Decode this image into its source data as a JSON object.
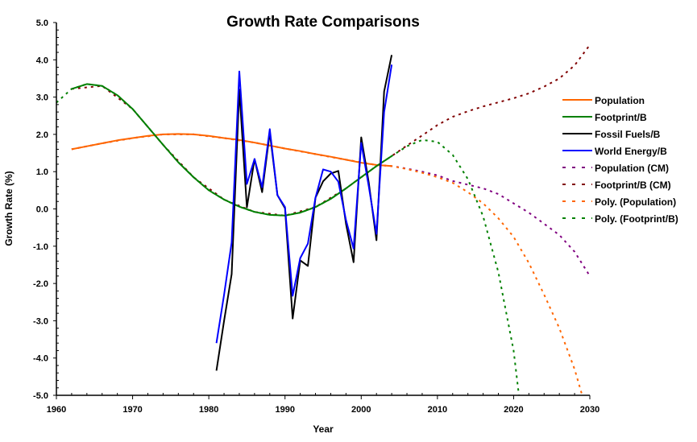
{
  "chart_data": {
    "type": "line",
    "title": "Growth Rate Comparisons",
    "xlabel": "Year",
    "ylabel": "Growth Rate (%)",
    "xlim": [
      1960,
      2030
    ],
    "ylim": [
      -5.0,
      5.0
    ],
    "x_ticks": [
      "1960",
      "1970",
      "1980",
      "1990",
      "2000",
      "2010",
      "2020",
      "2030"
    ],
    "y_ticks": [
      "5.0",
      "4.0",
      "3.0",
      "2.0",
      "1.0",
      "0.0",
      "-1.0",
      "-2.0",
      "-3.0",
      "-4.0",
      "-5.0"
    ],
    "grid": false,
    "legend_position": "right",
    "series": [
      {
        "name": "Population",
        "color": "#ff6600",
        "style": "solid",
        "x": [
          1962,
          1964,
          1966,
          1968,
          1970,
          1972,
          1974,
          1976,
          1978,
          1980,
          1982,
          1984,
          1986,
          1988,
          1990,
          1992,
          1994,
          1996,
          1998,
          2000,
          2002,
          2004
        ],
        "values": [
          1.6,
          1.68,
          1.76,
          1.84,
          1.9,
          1.96,
          2.0,
          2.01,
          2.0,
          1.96,
          1.9,
          1.85,
          1.78,
          1.7,
          1.62,
          1.55,
          1.47,
          1.4,
          1.32,
          1.24,
          1.18,
          1.15
        ]
      },
      {
        "name": "Footprint/B",
        "color": "#008000",
        "style": "solid",
        "x": [
          1962,
          1964,
          1966,
          1968,
          1970,
          1972,
          1974,
          1976,
          1978,
          1980,
          1982,
          1984,
          1986,
          1988,
          1990,
          1992,
          1994,
          1996,
          1998,
          2000,
          2002,
          2004
        ],
        "values": [
          3.22,
          3.35,
          3.3,
          3.05,
          2.68,
          2.2,
          1.72,
          1.25,
          0.85,
          0.5,
          0.25,
          0.06,
          -0.08,
          -0.16,
          -0.18,
          -0.1,
          0.05,
          0.27,
          0.55,
          0.85,
          1.15,
          1.42
        ]
      },
      {
        "name": "Fossil Fuels/B",
        "color": "#000000",
        "style": "solid",
        "x": [
          1981,
          1982,
          1983,
          1984,
          1985,
          1986,
          1987,
          1988,
          1989,
          1990,
          1991,
          1992,
          1993,
          1994,
          1995,
          1996,
          1997,
          1998,
          1999,
          2000,
          2001,
          2002,
          2003,
          2004
        ],
        "values": [
          -4.34,
          -3.0,
          -1.75,
          3.2,
          0.04,
          1.34,
          0.45,
          2.05,
          0.37,
          0.02,
          -2.94,
          -1.38,
          -1.53,
          0.3,
          0.74,
          0.95,
          1.02,
          -0.4,
          -1.43,
          1.92,
          0.7,
          -0.84,
          3.15,
          4.13
        ]
      },
      {
        "name": "World Energy/B",
        "color": "#0000ff",
        "style": "solid",
        "x": [
          1981,
          1982,
          1983,
          1984,
          1985,
          1986,
          1987,
          1988,
          1989,
          1990,
          1991,
          1992,
          1993,
          1994,
          1995,
          1996,
          1997,
          1998,
          1999,
          2000,
          2001,
          2002,
          2003,
          2004
        ],
        "values": [
          -3.6,
          -2.3,
          -0.9,
          3.69,
          0.67,
          1.34,
          0.58,
          2.14,
          0.37,
          0.05,
          -2.33,
          -1.32,
          -0.93,
          0.3,
          1.06,
          1.0,
          0.73,
          -0.3,
          -1.06,
          1.77,
          0.6,
          -0.67,
          2.6,
          3.87
        ]
      },
      {
        "name": "Population (CM)",
        "color": "#800080",
        "style": "dashed",
        "x": [
          1962,
          1966,
          1970,
          1974,
          1978,
          1982,
          1986,
          1990,
          1994,
          1998,
          2002,
          2004,
          2006,
          2008,
          2010,
          2012,
          2014,
          2016,
          2018,
          2020,
          2022,
          2024,
          2026,
          2028,
          2030
        ],
        "values": [
          1.6,
          1.76,
          1.9,
          2.0,
          2.0,
          1.9,
          1.78,
          1.62,
          1.47,
          1.32,
          1.18,
          1.15,
          1.08,
          1.0,
          0.9,
          0.75,
          0.65,
          0.55,
          0.4,
          0.15,
          -0.1,
          -0.4,
          -0.7,
          -1.15,
          -1.8
        ]
      },
      {
        "name": "Footprint/B (CM)",
        "color": "#800000",
        "style": "dashed",
        "x": [
          1962,
          1966,
          1970,
          1974,
          1978,
          1982,
          1986,
          1990,
          1994,
          1998,
          2002,
          2004,
          2006,
          2008,
          2010,
          2012,
          2014,
          2016,
          2018,
          2020,
          2022,
          2024,
          2026,
          2028,
          2030
        ],
        "values": [
          3.22,
          3.3,
          2.68,
          1.72,
          0.85,
          0.25,
          -0.08,
          -0.18,
          0.05,
          0.55,
          1.15,
          1.42,
          1.7,
          1.97,
          2.25,
          2.47,
          2.62,
          2.75,
          2.86,
          2.97,
          3.1,
          3.28,
          3.5,
          3.85,
          4.4
        ]
      },
      {
        "name": "Poly. (Population)",
        "color": "#ff6600",
        "style": "dashed",
        "x": [
          1962,
          1966,
          1970,
          1974,
          1978,
          1982,
          1986,
          1990,
          1994,
          1998,
          2002,
          2004,
          2006,
          2008,
          2010,
          2012,
          2014,
          2016,
          2018,
          2020,
          2022,
          2024,
          2026,
          2028,
          2029
        ],
        "values": [
          1.6,
          1.76,
          1.9,
          2.0,
          2.0,
          1.9,
          1.78,
          1.62,
          1.47,
          1.32,
          1.18,
          1.15,
          1.07,
          0.97,
          0.85,
          0.7,
          0.45,
          0.15,
          -0.25,
          -0.75,
          -1.45,
          -2.3,
          -3.2,
          -4.3,
          -5.0
        ]
      },
      {
        "name": "Poly. (Footprint/B)",
        "color": "#008000",
        "style": "dashed",
        "x": [
          1960,
          1962,
          1964,
          1966,
          1968,
          1970,
          1972,
          1974,
          1976,
          1978,
          1980,
          1982,
          1984,
          1986,
          1988,
          1990,
          1992,
          1994,
          1996,
          1998,
          2000,
          2002,
          2004,
          2006,
          2008,
          2010,
          2012,
          2014,
          2016,
          2018,
          2020,
          2020.7
        ],
        "values": [
          2.85,
          3.22,
          3.35,
          3.3,
          3.05,
          2.68,
          2.2,
          1.72,
          1.25,
          0.85,
          0.5,
          0.25,
          0.06,
          -0.08,
          -0.16,
          -0.18,
          -0.1,
          0.05,
          0.27,
          0.55,
          0.85,
          1.15,
          1.42,
          1.68,
          1.85,
          1.8,
          1.45,
          0.8,
          -0.2,
          -1.7,
          -3.8,
          -5.0
        ]
      }
    ]
  }
}
